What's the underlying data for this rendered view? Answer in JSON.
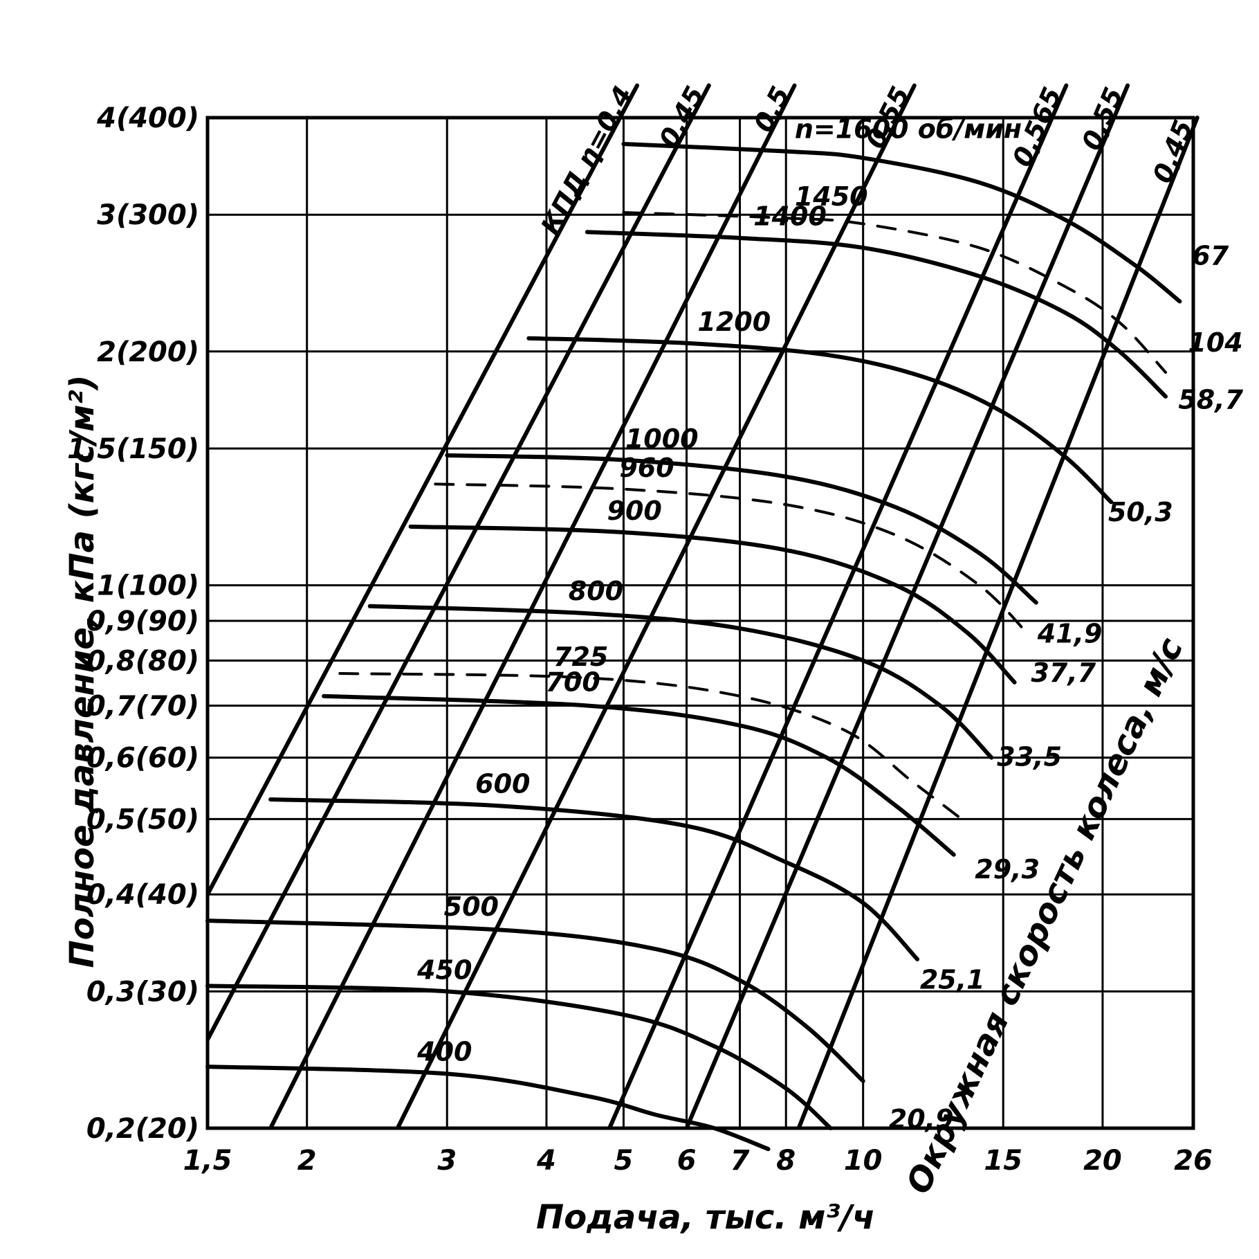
{
  "chart_data": {
    "type": "line",
    "xlabel": "Подача, тыс. м³/ч",
    "ylabel": "Полное давление, кПа (кгс/м²)",
    "x_scale": "log",
    "y_scale": "log",
    "xlim": [
      1.5,
      26
    ],
    "ylim": [
      0.2,
      4
    ],
    "x_ticks": [
      {
        "value": 1.5,
        "label": "1,5"
      },
      {
        "value": 2,
        "label": "2"
      },
      {
        "value": 3,
        "label": "3"
      },
      {
        "value": 4,
        "label": "4"
      },
      {
        "value": 5,
        "label": "5"
      },
      {
        "value": 6,
        "label": "6"
      },
      {
        "value": 7,
        "label": "7"
      },
      {
        "value": 8,
        "label": "8"
      },
      {
        "value": 10,
        "label": "10"
      },
      {
        "value": 15,
        "label": "15"
      },
      {
        "value": 20,
        "label": "20"
      },
      {
        "value": 26,
        "label": "26"
      }
    ],
    "y_ticks": [
      {
        "value": 0.2,
        "label": "0,2(20)"
      },
      {
        "value": 0.3,
        "label": "0,3(30)"
      },
      {
        "value": 0.4,
        "label": "0,4(40)"
      },
      {
        "value": 0.5,
        "label": "0,5(50)"
      },
      {
        "value": 0.6,
        "label": "0,6(60)"
      },
      {
        "value": 0.7,
        "label": "0,7(70)"
      },
      {
        "value": 0.8,
        "label": "0,8(80)"
      },
      {
        "value": 0.9,
        "label": "0,9(90)"
      },
      {
        "value": 1.0,
        "label": "1(100)"
      },
      {
        "value": 1.5,
        "label": "1,5(150)"
      },
      {
        "value": 2.0,
        "label": "2(200)"
      },
      {
        "value": 3.0,
        "label": "3(300)"
      },
      {
        "value": 4.0,
        "label": "4(400)"
      }
    ],
    "speed_curves": [
      {
        "label": "n=1600",
        "suffix": "об/мин",
        "dashed": false,
        "x": [
          5,
          8,
          10,
          14,
          18,
          22,
          25
        ],
        "y": [
          3.7,
          3.62,
          3.55,
          3.3,
          2.95,
          2.58,
          2.32
        ]
      },
      {
        "label": "1450",
        "dashed": true,
        "x": [
          5,
          8,
          10,
          14,
          18,
          21,
          24
        ],
        "y": [
          3.02,
          2.97,
          2.92,
          2.72,
          2.42,
          2.18,
          1.88
        ]
      },
      {
        "label": "1400",
        "dashed": false,
        "x": [
          4.5,
          7,
          10,
          14,
          18,
          21,
          24
        ],
        "y": [
          2.85,
          2.8,
          2.72,
          2.5,
          2.24,
          2.0,
          1.75
        ]
      },
      {
        "label": "1200",
        "dashed": false,
        "x": [
          3.8,
          6,
          9,
          12,
          15,
          18,
          20.5
        ],
        "y": [
          2.08,
          2.05,
          1.98,
          1.85,
          1.67,
          1.46,
          1.28
        ]
      },
      {
        "label": "1000",
        "dashed": false,
        "x": [
          3.0,
          5,
          8,
          11,
          14,
          16.5
        ],
        "y": [
          1.47,
          1.45,
          1.38,
          1.26,
          1.1,
          0.95
        ]
      },
      {
        "label": "960",
        "dashed": true,
        "x": [
          2.9,
          5,
          8,
          11,
          14,
          16.2
        ],
        "y": [
          1.35,
          1.33,
          1.27,
          1.16,
          1.0,
          0.86
        ]
      },
      {
        "label": "900",
        "dashed": false,
        "x": [
          2.7,
          5,
          8,
          11,
          13.5,
          15.5
        ],
        "y": [
          1.19,
          1.17,
          1.11,
          1.0,
          0.87,
          0.75
        ]
      },
      {
        "label": "800",
        "dashed": false,
        "x": [
          2.4,
          4.5,
          7,
          10,
          12.5,
          14.5
        ],
        "y": [
          0.94,
          0.92,
          0.88,
          0.8,
          0.7,
          0.6
        ]
      },
      {
        "label": "725",
        "dashed": true,
        "x": [
          2.2,
          4.5,
          7,
          9.5,
          11.5,
          13.3
        ],
        "y": [
          0.77,
          0.76,
          0.72,
          0.65,
          0.56,
          0.5
        ]
      },
      {
        "label": "700",
        "dashed": false,
        "x": [
          2.1,
          4.5,
          7,
          9,
          11,
          13
        ],
        "y": [
          0.72,
          0.7,
          0.66,
          0.6,
          0.52,
          0.45
        ]
      },
      {
        "label": "600",
        "dashed": false,
        "x": [
          1.8,
          3.5,
          6,
          8,
          10,
          11.7
        ],
        "y": [
          0.53,
          0.52,
          0.49,
          0.44,
          0.39,
          0.33
        ]
      },
      {
        "label": "500",
        "dashed": false,
        "x": [
          1.5,
          3.5,
          5.5,
          7,
          8.5,
          10
        ],
        "y": [
          0.37,
          0.36,
          0.34,
          0.31,
          0.27,
          0.23
        ]
      },
      {
        "label": "450",
        "dashed": false,
        "x": [
          1.5,
          3,
          5,
          6.5,
          8,
          9.1
        ],
        "y": [
          0.305,
          0.3,
          0.28,
          0.255,
          0.225,
          0.2
        ]
      },
      {
        "label": "400",
        "dashed": false,
        "x": [
          1.5,
          3,
          4.5,
          5.5,
          6.5,
          7.6
        ],
        "y": [
          0.24,
          0.235,
          0.22,
          0.208,
          0.2,
          0.188
        ]
      }
    ],
    "efficiency_lines": [
      {
        "label": "КПД η=0,4",
        "x": [
          1.5,
          5.2
        ],
        "y": [
          0.4,
          4.4
        ]
      },
      {
        "label": "0,45",
        "x": [
          1.5,
          6.4
        ],
        "y": [
          0.26,
          4.4
        ]
      },
      {
        "label": "0,5",
        "x": [
          1.8,
          8.2
        ],
        "y": [
          0.2,
          4.4
        ]
      },
      {
        "label": "0,55",
        "x": [
          2.6,
          11.6
        ],
        "y": [
          0.2,
          4.4
        ]
      },
      {
        "label": "0,565",
        "x": [
          4.8,
          18.0
        ],
        "y": [
          0.2,
          4.4
        ]
      },
      {
        "label": "0,55",
        "x": [
          6.0,
          21.5
        ],
        "y": [
          0.2,
          4.4
        ]
      },
      {
        "label": "0,45",
        "x": [
          8.3,
          26.3
        ],
        "y": [
          0.2,
          4.0
        ]
      }
    ],
    "tip_speed_title": "Окружная скорость колеса, м/с",
    "tip_speed_labels": [
      {
        "label": "20,9",
        "x": 10.6,
        "y": 0.205
      },
      {
        "label": "25,1",
        "x": 11.6,
        "y": 0.31
      },
      {
        "label": "29,3",
        "x": 13.6,
        "y": 0.43
      },
      {
        "label": "33,5",
        "x": 14.5,
        "y": 0.6
      },
      {
        "label": "37,7",
        "x": 16.0,
        "y": 0.77
      },
      {
        "label": "41,9",
        "x": 16.3,
        "y": 0.865
      },
      {
        "label": "50,3",
        "x": 20.0,
        "y": 1.24
      },
      {
        "label": "58,7",
        "x": 24.5,
        "y": 1.73
      },
      {
        "label": "104",
        "x": 25.2,
        "y": 2.05
      },
      {
        "label": "67",
        "x": 25.5,
        "y": 2.65
      }
    ]
  }
}
